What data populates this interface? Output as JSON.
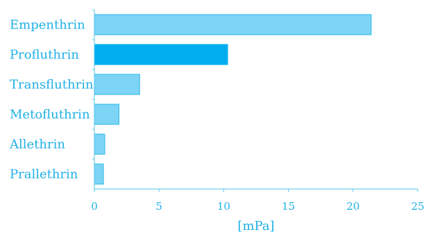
{
  "chart_data": {
    "type": "bar",
    "orientation": "horizontal",
    "categories": [
      "Empenthrin",
      "Profluthrin",
      "Transfluthrin",
      "Metofluthrin",
      "Allethrin",
      "Prallethrin"
    ],
    "values": [
      21.4,
      10.3,
      3.5,
      1.9,
      0.8,
      0.7
    ],
    "title": "",
    "xlabel": "[mPa]",
    "ylabel": "",
    "xlim": [
      0,
      25
    ],
    "xticks": [
      "0",
      "5",
      "10",
      "15",
      "20",
      "25"
    ],
    "grid": false,
    "highlight_category": "Profluthrin",
    "colors": {
      "bar": "#7dd4f5",
      "bar_stroke": "#29b6e8",
      "highlight": "#00aeef",
      "axis": "#4cc4ee",
      "text": "#1fb0e6"
    }
  }
}
